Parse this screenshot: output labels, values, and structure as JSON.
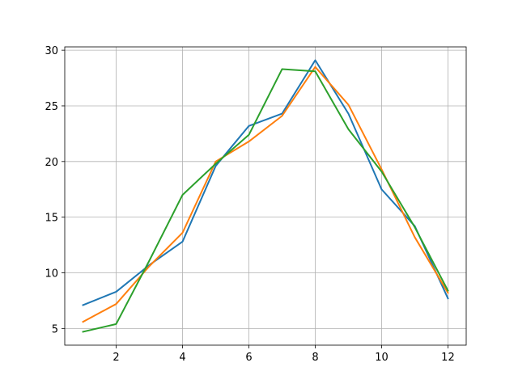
{
  "chart_data": {
    "type": "line",
    "title": "",
    "xlabel": "",
    "ylabel": "",
    "x": [
      1,
      2,
      3,
      4,
      5,
      6,
      7,
      8,
      9,
      10,
      11,
      12
    ],
    "xlim": [
      0.45,
      12.55
    ],
    "ylim": [
      3.5,
      30.3
    ],
    "xticks": [
      2,
      4,
      6,
      8,
      10,
      12
    ],
    "yticks": [
      5,
      10,
      15,
      20,
      25,
      30
    ],
    "grid": true,
    "legend": "none",
    "series": [
      {
        "color": "#1f77b4",
        "values": [
          7.1,
          8.3,
          10.7,
          12.8,
          19.6,
          23.2,
          24.3,
          29.1,
          24.3,
          17.5,
          14.2,
          7.7
        ]
      },
      {
        "color": "#ff7f0e",
        "values": [
          5.6,
          7.2,
          10.6,
          13.6,
          20.0,
          21.8,
          24.1,
          28.5,
          25.1,
          19.3,
          13.2,
          8.2
        ]
      },
      {
        "color": "#2ca02c",
        "values": [
          4.7,
          5.4,
          11.1,
          17.0,
          19.8,
          22.4,
          28.3,
          28.1,
          22.9,
          19.1,
          14.1,
          8.4
        ]
      }
    ]
  }
}
